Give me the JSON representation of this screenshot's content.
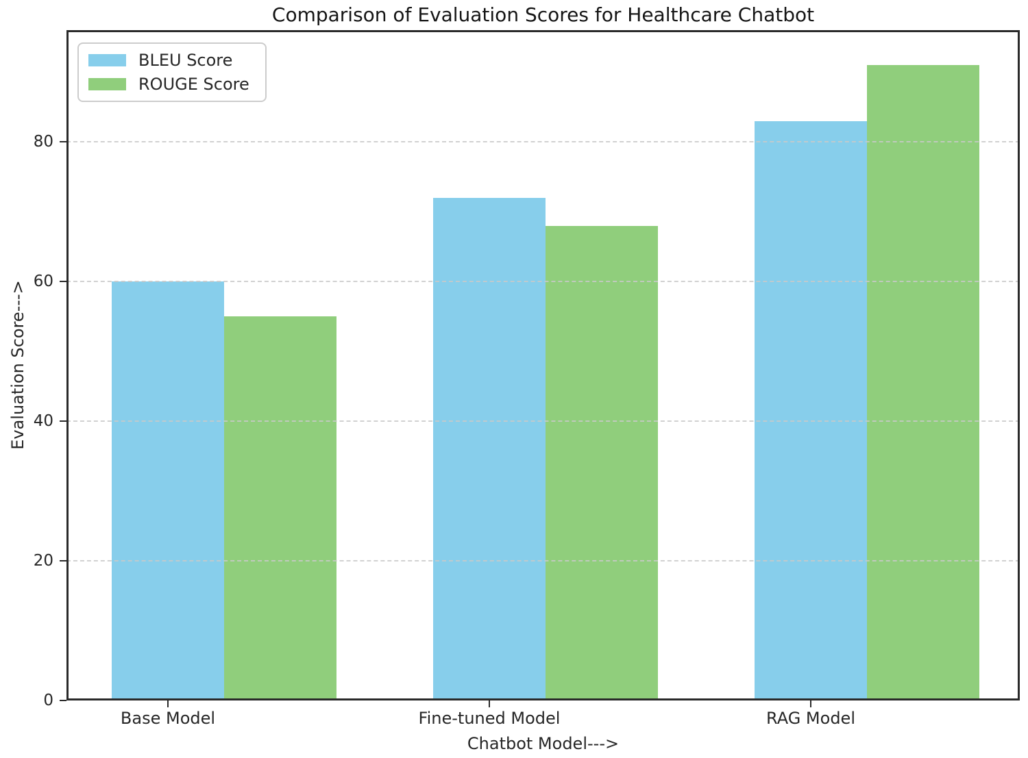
{
  "chart_data": {
    "type": "bar",
    "title": "Comparison of Evaluation Scores for Healthcare Chatbot",
    "categories": [
      "Base Model",
      "Fine-tuned Model",
      "RAG Model"
    ],
    "series": [
      {
        "name": "BLEU Score",
        "color": "#87CEEB",
        "values": [
          60,
          72,
          83
        ]
      },
      {
        "name": "ROUGE Score",
        "color": "#90CE7C",
        "values": [
          55,
          68,
          91
        ]
      }
    ],
    "xlabel": "Chatbot Model--->",
    "ylabel": "Evaluation Score--->",
    "ylim": [
      0,
      96
    ],
    "yticks": [
      0,
      20,
      40,
      60,
      80
    ],
    "grid": "horizontal dashed",
    "legend_position": "upper left",
    "colors": {
      "spine": "#2a2a2a",
      "gridline": "#c9c9c9",
      "background": "#ffffff"
    }
  }
}
